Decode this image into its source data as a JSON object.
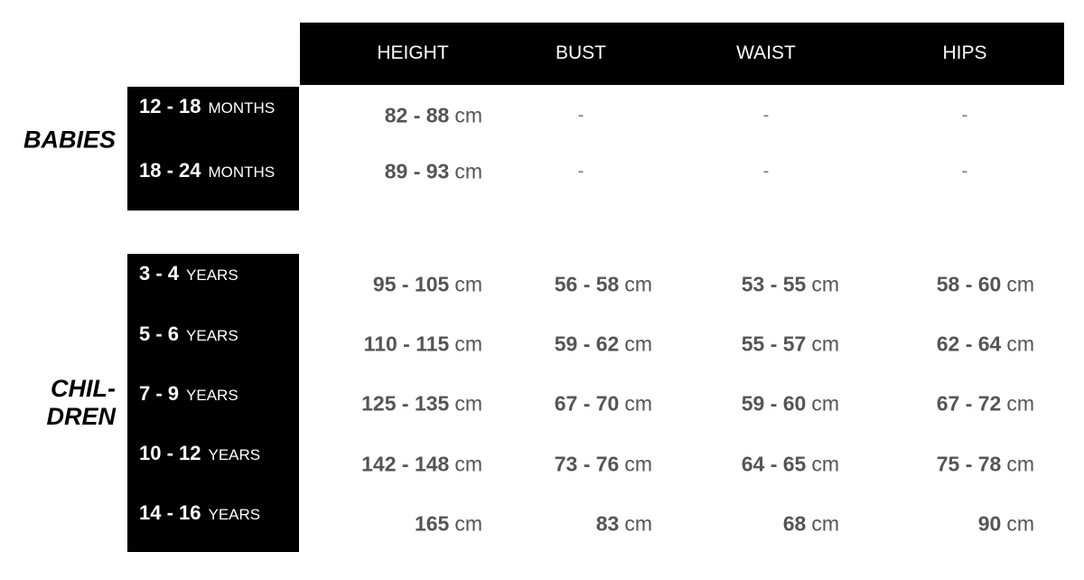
{
  "columns": [
    "HEIGHT",
    "BUST",
    "WAIST",
    "HIPS"
  ],
  "groups": [
    {
      "label_lines": [
        "BABIES"
      ],
      "rows": [
        {
          "size": "12 - 18",
          "unit": "MONTHS",
          "values": [
            {
              "num": "82 - 88",
              "unit": "cm"
            },
            {
              "num": "-"
            },
            {
              "num": "-"
            },
            {
              "num": "-"
            }
          ]
        },
        {
          "size": "18 - 24",
          "unit": "MONTHS",
          "values": [
            {
              "num": "89 - 93",
              "unit": "cm"
            },
            {
              "num": "-"
            },
            {
              "num": "-"
            },
            {
              "num": "-"
            }
          ]
        }
      ]
    },
    {
      "label_lines": [
        "CHIL-",
        "DREN"
      ],
      "rows": [
        {
          "size": "3 - 4",
          "unit": "YEARS",
          "values": [
            {
              "num": "95 - 105",
              "unit": "cm"
            },
            {
              "num": "56 - 58",
              "unit": "cm"
            },
            {
              "num": "53 - 55",
              "unit": "cm"
            },
            {
              "num": "58 - 60",
              "unit": "cm"
            }
          ]
        },
        {
          "size": "5 - 6",
          "unit": "YEARS",
          "values": [
            {
              "num": "110 - 115",
              "unit": "cm"
            },
            {
              "num": "59 - 62",
              "unit": "cm"
            },
            {
              "num": "55 - 57",
              "unit": "cm"
            },
            {
              "num": "62 - 64",
              "unit": "cm"
            }
          ]
        },
        {
          "size": "7 - 9",
          "unit": "YEARS",
          "values": [
            {
              "num": "125 - 135",
              "unit": "cm"
            },
            {
              "num": "67 - 70",
              "unit": "cm"
            },
            {
              "num": "59 - 60",
              "unit": "cm"
            },
            {
              "num": "67 - 72",
              "unit": "cm"
            }
          ]
        },
        {
          "size": "10 - 12",
          "unit": "YEARS",
          "values": [
            {
              "num": "142 - 148",
              "unit": "cm"
            },
            {
              "num": "73 - 76",
              "unit": "cm"
            },
            {
              "num": "64 - 65",
              "unit": "cm"
            },
            {
              "num": "75 - 78",
              "unit": "cm"
            }
          ]
        },
        {
          "size": "14 - 16",
          "unit": "YEARS",
          "values": [
            {
              "num": "165",
              "unit": "cm"
            },
            {
              "num": "83",
              "unit": "cm"
            },
            {
              "num": "68",
              "unit": "cm"
            },
            {
              "num": "90",
              "unit": "cm"
            }
          ]
        }
      ]
    }
  ]
}
